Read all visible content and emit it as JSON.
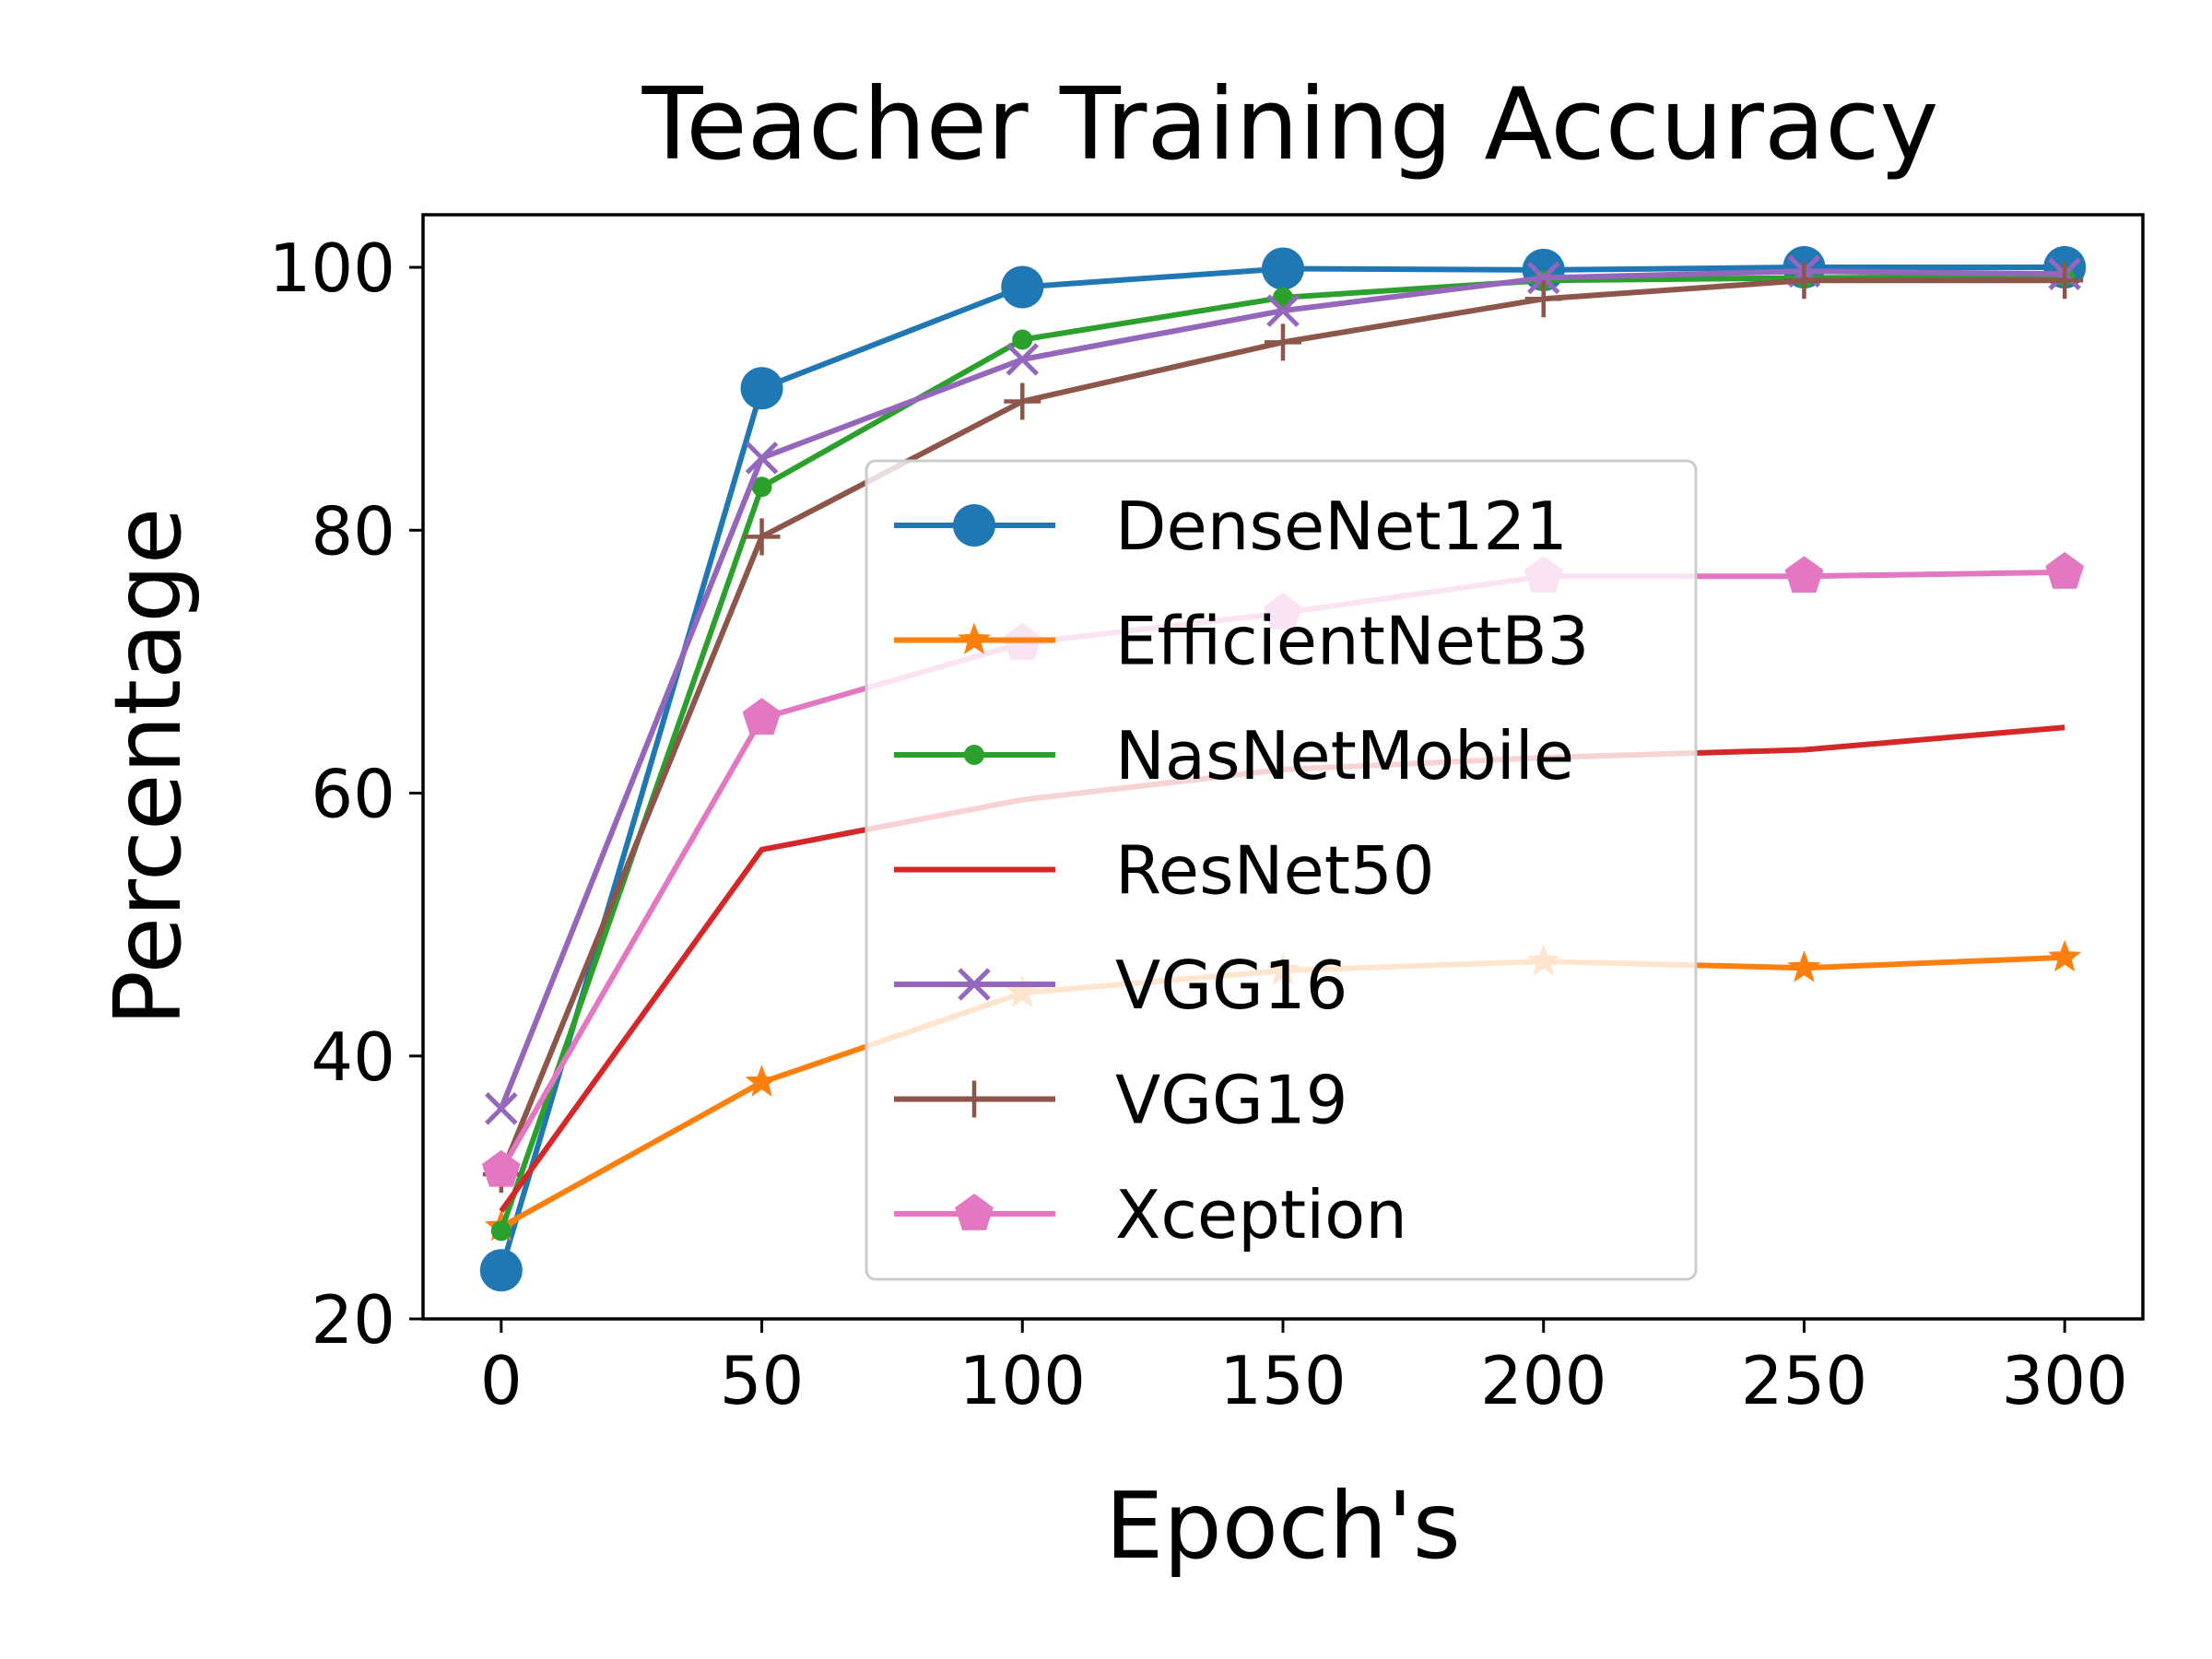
{
  "chart_data": {
    "type": "line",
    "title": "Teacher Training Accuracy",
    "xlabel": "Epoch's",
    "ylabel": "Percentage",
    "x": [
      0,
      50,
      100,
      150,
      200,
      250,
      300
    ],
    "xticks": [
      0,
      50,
      100,
      150,
      200,
      250,
      300
    ],
    "yticks": [
      20,
      40,
      60,
      80,
      100
    ],
    "xlim": [
      -15,
      315
    ],
    "ylim": [
      20,
      104
    ],
    "grid": false,
    "legend_position": "center",
    "series": [
      {
        "name": "DenseNet121",
        "color": "#1f77b4",
        "marker": "circle",
        "values": [
          23.7,
          90.8,
          98.5,
          99.9,
          99.8,
          100,
          100
        ]
      },
      {
        "name": "EfficientNetB3",
        "color": "#ff7f0e",
        "marker": "star",
        "values": [
          27,
          38,
          44.8,
          46.5,
          47.2,
          46.7,
          47.5
        ]
      },
      {
        "name": "NasNetMobile",
        "color": "#2ca02c",
        "marker": "point",
        "values": [
          26.7,
          83.3,
          94.5,
          97.7,
          99,
          99.2,
          99.3
        ]
      },
      {
        "name": "ResNet50",
        "color": "#d62728",
        "marker": "none",
        "values": [
          28.2,
          55.7,
          59.5,
          61.8,
          62.7,
          63.3,
          65
        ]
      },
      {
        "name": "VGG16",
        "color": "#9467bd",
        "marker": "x",
        "values": [
          36,
          85.5,
          93,
          96.7,
          99.2,
          99.7,
          99.5
        ]
      },
      {
        "name": "VGG19",
        "color": "#8c564b",
        "marker": "plus",
        "values": [
          31,
          79.5,
          89.8,
          94.3,
          97.6,
          99,
          99
        ]
      },
      {
        "name": "Xception",
        "color": "#e377c2",
        "marker": "pentagon",
        "values": [
          31.3,
          65.7,
          71.4,
          73.7,
          76.5,
          76.5,
          76.8
        ]
      }
    ]
  }
}
